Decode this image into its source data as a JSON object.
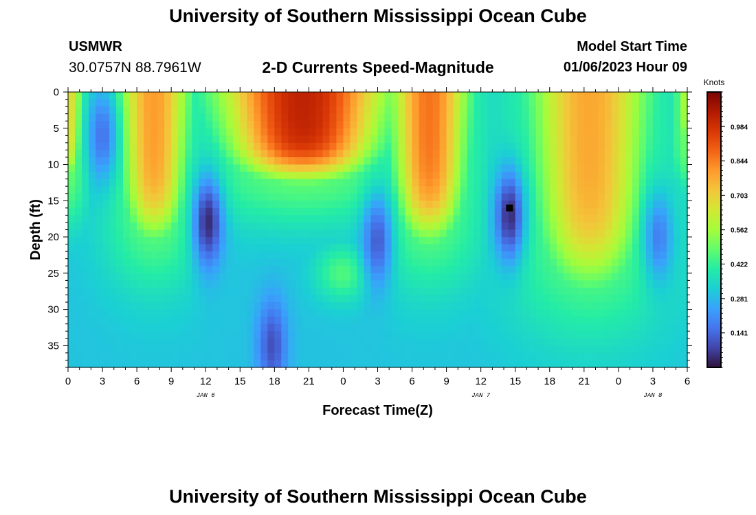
{
  "header": {
    "title": "University of Southern Mississippi Ocean Cube",
    "station_id": "USMWR",
    "station_coords": "30.0757N  88.7961W",
    "subtitle": "2-D Currents Speed-Magnitude",
    "model_start_label": "Model Start Time",
    "model_start_value": "01/06/2023 Hour 09"
  },
  "footer": {
    "title": "University of Southern Mississippi Ocean Cube"
  },
  "chart_data": {
    "type": "heatmap",
    "title": "2-D Currents Speed-Magnitude",
    "xlabel": "Forecast Time(Z)",
    "ylabel": "Depth (ft)",
    "x_ticks": [
      "0",
      "3",
      "6",
      "9",
      "12",
      "15",
      "18",
      "21",
      "0",
      "3",
      "6",
      "9",
      "12",
      "15",
      "18",
      "21",
      "0",
      "3",
      "6"
    ],
    "x_hours": [
      0,
      3,
      6,
      9,
      12,
      15,
      18,
      21,
      24,
      27,
      30,
      33,
      36,
      39,
      42,
      45,
      48,
      51,
      54
    ],
    "date_labels": [
      {
        "label": "JAN 6",
        "hour": 12
      },
      {
        "label": "JAN 7",
        "hour": 36
      },
      {
        "label": "JAN 8",
        "hour": 51
      }
    ],
    "y_ticks": [
      "0",
      "5",
      "10",
      "15",
      "20",
      "25",
      "30",
      "35"
    ],
    "y_values": [
      0,
      5,
      10,
      15,
      20,
      25,
      30,
      35
    ],
    "xlim": [
      0,
      54
    ],
    "ylim": [
      0,
      38
    ],
    "y_inverted": true,
    "colorbar": {
      "unit": "Knots",
      "tick_labels": [
        "0.984",
        "0.844",
        "0.703",
        "0.562",
        "0.422",
        "0.281",
        "0.141"
      ],
      "tick_values": [
        0.984,
        0.844,
        0.703,
        0.562,
        0.422,
        0.281,
        0.141
      ],
      "range": [
        0.0,
        1.125
      ],
      "colormap": [
        "#30123b",
        "#4145ab",
        "#4675ed",
        "#39a2fc",
        "#1bcfd4",
        "#24eca6",
        "#61fc6c",
        "#a4fc3b",
        "#d1e834",
        "#f3c63a",
        "#fe9b2d",
        "#f36315",
        "#d93806",
        "#b11901",
        "#7a0403"
      ]
    },
    "field_features": {
      "grid_step_hours": 0.6,
      "grid_step_depth_ft": 1.0,
      "high_speed_lobes": [
        {
          "hour_center": 7.5,
          "hour_halfwidth": 3.0,
          "depth_max": 22,
          "peak": 0.8
        },
        {
          "hour_center": 20.5,
          "hour_halfwidth": 7.0,
          "depth_max": 13,
          "peak": 1.02
        },
        {
          "hour_center": 31.5,
          "hour_halfwidth": 3.3,
          "depth_max": 22,
          "peak": 0.86
        },
        {
          "hour_center": 45.5,
          "hour_halfwidth": 5.0,
          "depth_max": 29,
          "peak": 0.78
        },
        {
          "hour_center": 0.0,
          "hour_halfwidth": 1.3,
          "depth_max": 13,
          "peak": 0.68
        },
        {
          "hour_center": 54.0,
          "hour_halfwidth": 1.0,
          "depth_max": 8,
          "peak": 0.58
        }
      ],
      "low_speed_spots": [
        {
          "hour": 12.2,
          "depth": 18,
          "value": 0.04
        },
        {
          "hour": 27.0,
          "depth": 20.5,
          "value": 0.12
        },
        {
          "hour": 38.5,
          "depth": 17,
          "value": 0.04
        },
        {
          "hour": 17.8,
          "depth": 35,
          "value": 0.1
        },
        {
          "hour": 51.5,
          "depth": 20,
          "value": 0.18
        },
        {
          "hour": 3.0,
          "depth": 6,
          "value": 0.16
        }
      ],
      "marker": {
        "hour": 38.5,
        "depth": 16,
        "symbol": "square",
        "color": "#000000"
      }
    }
  }
}
